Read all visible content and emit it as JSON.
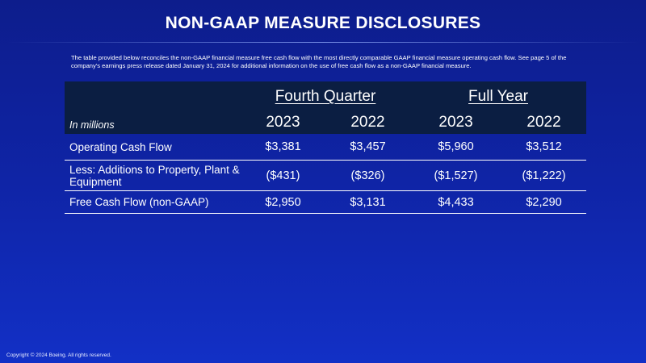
{
  "title": "NON-GAAP MEASURE DISCLOSURES",
  "intro": "The table provided below reconciles the non-GAAP financial measure free cash flow with the most directly comparable GAAP financial measure operating cash flow. See page 5 of the company's earnings press release dated January 31, 2024 for additional information on the use of free cash flow as a non-GAAP financial measure.",
  "table": {
    "units": "In millions",
    "groups": [
      "Fourth Quarter",
      "Full Year"
    ],
    "years": [
      "2023",
      "2022",
      "2023",
      "2022"
    ],
    "rows": [
      {
        "label": "Operating Cash Flow",
        "values": [
          "$3,381",
          "$3,457",
          "$5,960",
          "$3,512"
        ]
      },
      {
        "label": "Less: Additions to Property, Plant & Equipment",
        "values": [
          "($431)",
          "($326)",
          "($1,527)",
          "($1,222)"
        ]
      },
      {
        "label": "Free Cash Flow (non-GAAP)",
        "values": [
          "$2,950",
          "$3,131",
          "$4,433",
          "$2,290"
        ]
      }
    ]
  },
  "footer": "Copyright © 2024 Boeing. All rights reserved.",
  "colors": {
    "background": "#1230c6",
    "table_header": "#0b1e42",
    "text": "#ffffff"
  }
}
